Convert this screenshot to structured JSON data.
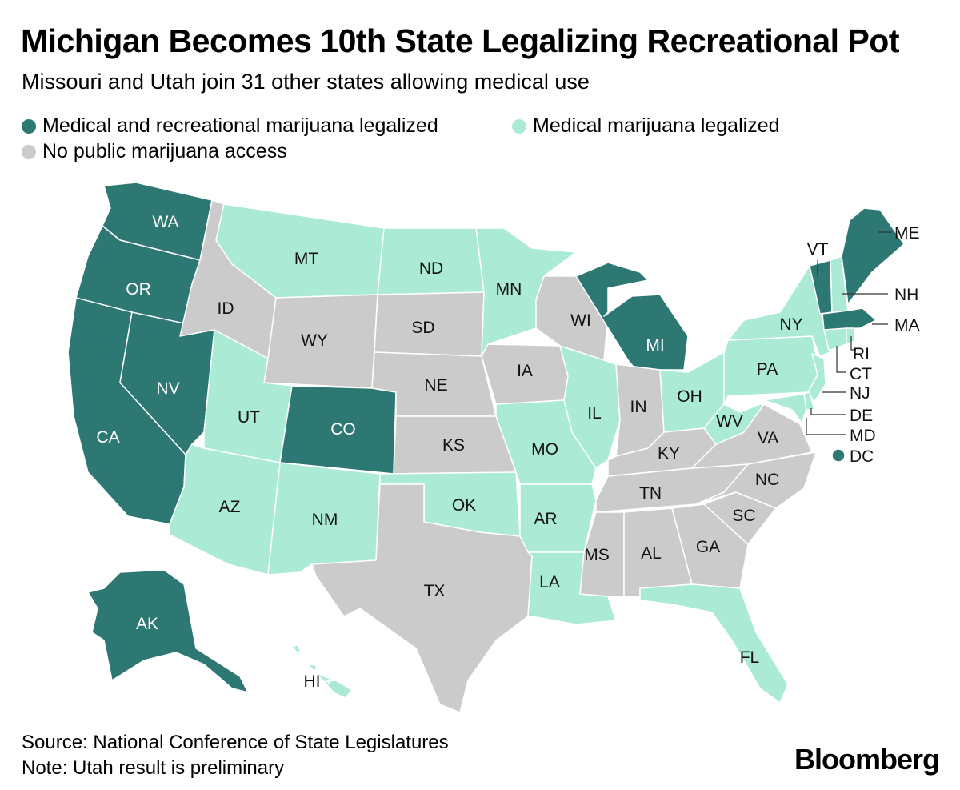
{
  "title": "Michigan Becomes 10th State Legalizing Recreational Pot",
  "subtitle": "Missouri and Utah join 31 other states allowing medical use",
  "colors": {
    "recreational": "#2e7874",
    "medical": "#abebd5",
    "none": "#cbcbcb"
  },
  "legend": [
    {
      "key": "recreational",
      "label": "Medical and recreational marijuana legalized"
    },
    {
      "key": "medical",
      "label": "Medical marijuana legalized"
    },
    {
      "key": "none",
      "label": "No public marijuana access"
    }
  ],
  "states": [
    {
      "abbr": "WA",
      "status": "recreational"
    },
    {
      "abbr": "OR",
      "status": "recreational"
    },
    {
      "abbr": "CA",
      "status": "recreational"
    },
    {
      "abbr": "NV",
      "status": "recreational"
    },
    {
      "abbr": "CO",
      "status": "recreational"
    },
    {
      "abbr": "MI",
      "status": "recreational"
    },
    {
      "abbr": "AK",
      "status": "recreational"
    },
    {
      "abbr": "ME",
      "status": "recreational"
    },
    {
      "abbr": "VT",
      "status": "recreational"
    },
    {
      "abbr": "MA",
      "status": "recreational"
    },
    {
      "abbr": "DC",
      "status": "recreational"
    },
    {
      "abbr": "MT",
      "status": "medical"
    },
    {
      "abbr": "ND",
      "status": "medical"
    },
    {
      "abbr": "MN",
      "status": "medical"
    },
    {
      "abbr": "UT",
      "status": "medical"
    },
    {
      "abbr": "AZ",
      "status": "medical"
    },
    {
      "abbr": "NM",
      "status": "medical"
    },
    {
      "abbr": "OK",
      "status": "medical"
    },
    {
      "abbr": "AR",
      "status": "medical"
    },
    {
      "abbr": "LA",
      "status": "medical"
    },
    {
      "abbr": "MO",
      "status": "medical"
    },
    {
      "abbr": "IL",
      "status": "medical"
    },
    {
      "abbr": "OH",
      "status": "medical"
    },
    {
      "abbr": "WV",
      "status": "medical"
    },
    {
      "abbr": "PA",
      "status": "medical"
    },
    {
      "abbr": "NY",
      "status": "medical"
    },
    {
      "abbr": "NH",
      "status": "medical"
    },
    {
      "abbr": "CT",
      "status": "medical"
    },
    {
      "abbr": "RI",
      "status": "medical"
    },
    {
      "abbr": "NJ",
      "status": "medical"
    },
    {
      "abbr": "DE",
      "status": "medical"
    },
    {
      "abbr": "MD",
      "status": "medical"
    },
    {
      "abbr": "FL",
      "status": "medical"
    },
    {
      "abbr": "HI",
      "status": "medical"
    },
    {
      "abbr": "ID",
      "status": "none"
    },
    {
      "abbr": "WY",
      "status": "none"
    },
    {
      "abbr": "SD",
      "status": "none"
    },
    {
      "abbr": "NE",
      "status": "none"
    },
    {
      "abbr": "KS",
      "status": "none"
    },
    {
      "abbr": "TX",
      "status": "none"
    },
    {
      "abbr": "IA",
      "status": "none"
    },
    {
      "abbr": "WI",
      "status": "none"
    },
    {
      "abbr": "IN",
      "status": "none"
    },
    {
      "abbr": "KY",
      "status": "none"
    },
    {
      "abbr": "TN",
      "status": "none"
    },
    {
      "abbr": "MS",
      "status": "none"
    },
    {
      "abbr": "AL",
      "status": "none"
    },
    {
      "abbr": "GA",
      "status": "none"
    },
    {
      "abbr": "SC",
      "status": "none"
    },
    {
      "abbr": "NC",
      "status": "none"
    },
    {
      "abbr": "VA",
      "status": "none"
    }
  ],
  "source": "Source: National Conference of State Legislatures",
  "note": "Note: Utah result is preliminary",
  "brand": "Bloomberg"
}
